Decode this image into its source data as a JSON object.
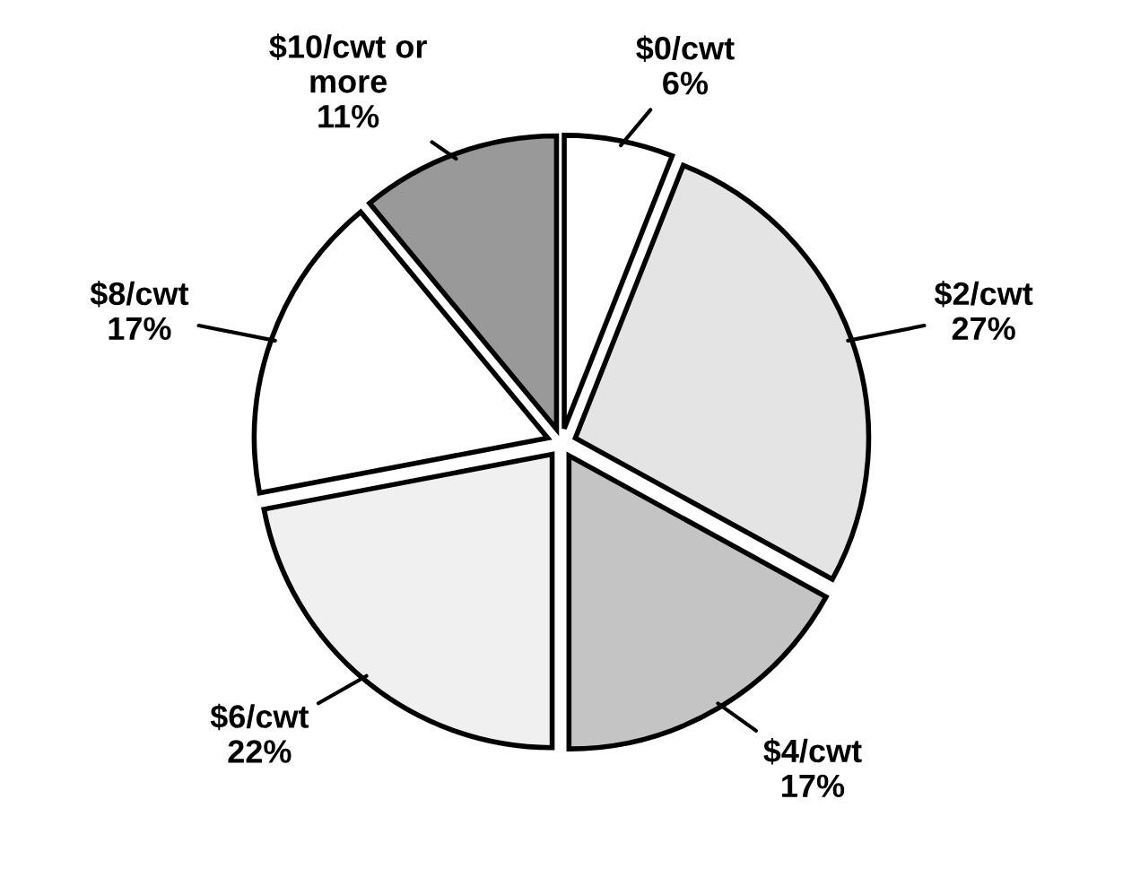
{
  "chart_data": {
    "type": "pie",
    "categories": [
      "$0/cwt",
      "$2/cwt",
      "$4/cwt",
      "$6/cwt",
      "$8/cwt",
      "$10/cwt or\nmore"
    ],
    "values": [
      6,
      27,
      17,
      22,
      17,
      11
    ],
    "value_labels": [
      "6%",
      "27%",
      "17%",
      "22%",
      "17%",
      "11%"
    ],
    "colors": [
      "#ffffff",
      "#e4e4e4",
      "#c4c4c4",
      "#f0f0f0",
      "#ffffff",
      "#999999"
    ]
  }
}
